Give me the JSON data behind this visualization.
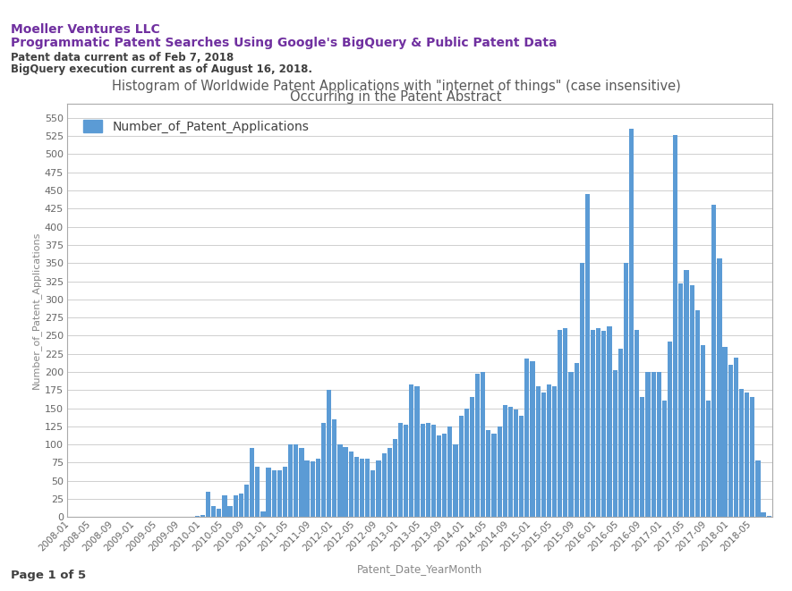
{
  "title_line1": "Histogram of Worldwide Patent Applications with \"internet of things\" (case insensitive)",
  "title_line2": "Occurring in the Patent Abstract",
  "header_company": "Moeller Ventures LLC",
  "header_subtitle": "Programmatic Patent Searches Using Google's BigQuery & Public Patent Data",
  "header_date1": "Patent data current as of Feb 7, 2018",
  "header_date2": "BigQuery execution current as of August 16, 2018.",
  "footer": "Page 1 of 5",
  "xlabel": "Patent_Date_YearMonth",
  "ylabel": "Number_of_Patent_Applications",
  "legend_label": "Number_of_Patent_Applications",
  "bar_color": "#5B9BD5",
  "background_color": "#FFFFFF",
  "plot_bg_color": "#FFFFFF",
  "grid_color": "#C8C8C8",
  "purple_color": "#7030A0",
  "header_text_color": "#404040",
  "title_color": "#595959",
  "values_full": [
    1,
    1,
    1,
    1,
    1,
    1,
    1,
    1,
    1,
    1,
    1,
    1,
    1,
    1,
    1,
    1,
    1,
    1,
    1,
    1,
    1,
    1,
    1,
    2,
    3,
    35,
    15,
    12,
    30,
    15,
    30,
    32,
    45,
    95,
    70,
    8,
    68,
    65,
    65,
    70,
    100,
    100,
    95,
    78,
    77,
    80,
    130,
    175,
    135,
    100,
    97,
    90,
    83,
    80,
    80,
    65,
    78,
    88,
    95,
    108,
    130,
    127,
    183,
    180,
    128,
    130,
    127,
    113,
    115,
    125,
    100,
    140,
    150,
    165,
    197,
    200,
    120,
    115,
    125,
    155,
    152,
    148,
    140,
    218,
    215,
    180,
    172,
    183,
    180,
    258,
    260,
    200,
    212,
    350,
    445,
    258,
    260,
    257,
    263,
    202,
    232,
    350,
    535,
    258,
    165,
    200,
    200,
    200,
    160,
    242,
    526,
    322,
    340,
    320,
    285,
    237,
    160,
    430,
    356,
    235,
    210,
    220,
    177,
    172,
    165,
    78,
    7,
    2
  ],
  "ytick_values": [
    0,
    25,
    50,
    75,
    100,
    125,
    150,
    175,
    200,
    225,
    250,
    275,
    300,
    325,
    350,
    375,
    400,
    425,
    450,
    475,
    500,
    525,
    550
  ],
  "ylim": [
    0,
    570
  ],
  "start_year": 2008,
  "start_month": 1,
  "tick_every": 4
}
